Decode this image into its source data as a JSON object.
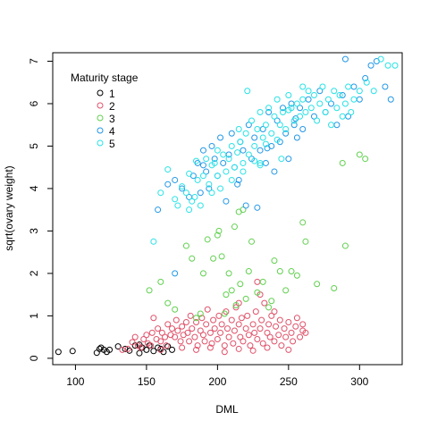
{
  "chart_data": {
    "type": "scatter",
    "xlabel": "DML",
    "ylabel": "sqrt(ovary weight)",
    "xlim": [
      84,
      330
    ],
    "ylim": [
      -0.15,
      7.2
    ],
    "x_ticks": [
      100,
      150,
      200,
      250,
      300
    ],
    "y_ticks": [
      0,
      1,
      2,
      3,
      4,
      5,
      6,
      7
    ],
    "grid": false,
    "legend": {
      "title": "Maturity stage",
      "placement": "top-left",
      "entries": [
        "1",
        "2",
        "3",
        "4",
        "5"
      ]
    },
    "series": [
      {
        "name": "1",
        "color": "#000000",
        "points": [
          [
            88,
            0.15
          ],
          [
            98,
            0.17
          ],
          [
            115,
            0.13
          ],
          [
            117,
            0.22
          ],
          [
            118,
            0.25
          ],
          [
            120,
            0.2
          ],
          [
            122,
            0.15
          ],
          [
            124,
            0.2
          ],
          [
            130,
            0.28
          ],
          [
            135,
            0.22
          ],
          [
            142,
            0.3
          ],
          [
            145,
            0.32
          ],
          [
            147,
            0.25
          ],
          [
            150,
            0.2
          ],
          [
            152,
            0.3
          ],
          [
            155,
            0.17
          ],
          [
            158,
            0.25
          ],
          [
            162,
            0.15
          ],
          [
            165,
            0.28
          ],
          [
            168,
            0.2
          ],
          [
            145,
            0.12
          ],
          [
            138,
            0.18
          ],
          [
            160,
            0.22
          ]
        ]
      },
      {
        "name": "2",
        "color": "#DF536B",
        "points": [
          [
            133,
            0.2
          ],
          [
            137,
            0.22
          ],
          [
            140,
            0.38
          ],
          [
            142,
            0.5
          ],
          [
            144,
            0.3
          ],
          [
            146,
            0.25
          ],
          [
            148,
            0.45
          ],
          [
            150,
            0.55
          ],
          [
            151,
            0.35
          ],
          [
            153,
            0.3
          ],
          [
            154,
            0.6
          ],
          [
            155,
            0.95
          ],
          [
            157,
            0.45
          ],
          [
            158,
            0.7
          ],
          [
            160,
            0.4
          ],
          [
            161,
            0.6
          ],
          [
            163,
            0.5
          ],
          [
            164,
            0.3
          ],
          [
            165,
            0.8
          ],
          [
            167,
            0.55
          ],
          [
            168,
            0.7
          ],
          [
            170,
            0.5
          ],
          [
            171,
            0.9
          ],
          [
            172,
            0.65
          ],
          [
            174,
            0.4
          ],
          [
            175,
            0.75
          ],
          [
            176,
            0.55
          ],
          [
            178,
            0.85
          ],
          [
            179,
            0.6
          ],
          [
            180,
            0.4
          ],
          [
            181,
            1.0
          ],
          [
            182,
            0.7
          ],
          [
            184,
            0.5
          ],
          [
            185,
            0.85
          ],
          [
            186,
            0.3
          ],
          [
            188,
            0.65
          ],
          [
            189,
            0.95
          ],
          [
            190,
            0.55
          ],
          [
            191,
            0.4
          ],
          [
            192,
            0.8
          ],
          [
            193,
            1.15
          ],
          [
            195,
            0.6
          ],
          [
            196,
            0.35
          ],
          [
            197,
            0.9
          ],
          [
            198,
            0.7
          ],
          [
            200,
            0.45
          ],
          [
            201,
            1.0
          ],
          [
            202,
            0.6
          ],
          [
            203,
            0.8
          ],
          [
            205,
            0.3
          ],
          [
            206,
            1.1
          ],
          [
            207,
            0.7
          ],
          [
            208,
            0.5
          ],
          [
            210,
            0.9
          ],
          [
            211,
            0.35
          ],
          [
            212,
            0.65
          ],
          [
            213,
            1.2
          ],
          [
            215,
            0.8
          ],
          [
            216,
            0.5
          ],
          [
            217,
            0.95
          ],
          [
            218,
            0.4
          ],
          [
            220,
            0.7
          ],
          [
            221,
            1.0
          ],
          [
            222,
            0.55
          ],
          [
            223,
            0.3
          ],
          [
            225,
            0.8
          ],
          [
            226,
            0.6
          ],
          [
            227,
            1.1
          ],
          [
            228,
            0.45
          ],
          [
            230,
            0.7
          ],
          [
            231,
            0.9
          ],
          [
            232,
            0.35
          ],
          [
            233,
            1.3
          ],
          [
            235,
            0.6
          ],
          [
            236,
            0.8
          ],
          [
            237,
            0.5
          ],
          [
            238,
            1.0
          ],
          [
            240,
            0.4
          ],
          [
            241,
            0.75
          ],
          [
            243,
            0.55
          ],
          [
            244,
            0.9
          ],
          [
            245,
            0.3
          ],
          [
            247,
            0.7
          ],
          [
            248,
            0.5
          ],
          [
            250,
            0.85
          ],
          [
            252,
            0.6
          ],
          [
            253,
            0.4
          ],
          [
            255,
            0.75
          ],
          [
            256,
            0.95
          ],
          [
            258,
            0.5
          ],
          [
            260,
            0.8
          ],
          [
            262,
            0.6
          ],
          [
            160,
            0.2
          ],
          [
            175,
            0.25
          ],
          [
            185,
            0.2
          ],
          [
            195,
            0.25
          ],
          [
            205,
            0.15
          ],
          [
            215,
            0.22
          ],
          [
            225,
            0.18
          ],
          [
            235,
            0.25
          ],
          [
            250,
            0.2
          ],
          [
            230,
            1.5
          ],
          [
            240,
            1.1
          ],
          [
            228,
            1.8
          ],
          [
            215,
            1.3
          ],
          [
            260,
            0.65
          ]
        ]
      },
      {
        "name": "3",
        "color": "#61D04F",
        "points": [
          [
            152,
            1.6
          ],
          [
            160,
            1.8
          ],
          [
            165,
            1.3
          ],
          [
            170,
            1.15
          ],
          [
            178,
            2.65
          ],
          [
            182,
            2.35
          ],
          [
            185,
            0.95
          ],
          [
            188,
            1.05
          ],
          [
            190,
            2.0
          ],
          [
            193,
            2.8
          ],
          [
            197,
            2.35
          ],
          [
            200,
            2.9
          ],
          [
            201,
            3.0
          ],
          [
            203,
            2.4
          ],
          [
            206,
            1.5
          ],
          [
            208,
            2.0
          ],
          [
            210,
            1.6
          ],
          [
            212,
            3.1
          ],
          [
            215,
            3.45
          ],
          [
            216,
            1.75
          ],
          [
            218,
            3.5
          ],
          [
            220,
            1.4
          ],
          [
            222,
            2.05
          ],
          [
            224,
            2.75
          ],
          [
            228,
            1.55
          ],
          [
            232,
            1.8
          ],
          [
            236,
            1.2
          ],
          [
            238,
            1.35
          ],
          [
            240,
            2.3
          ],
          [
            244,
            2.05
          ],
          [
            248,
            1.6
          ],
          [
            252,
            2.05
          ],
          [
            256,
            1.95
          ],
          [
            260,
            3.2
          ],
          [
            262,
            2.75
          ],
          [
            270,
            1.75
          ],
          [
            282,
            1.65
          ],
          [
            290,
            2.65
          ],
          [
            300,
            4.8
          ],
          [
            304,
            4.7
          ],
          [
            288,
            4.6
          ],
          [
            213,
            1.25
          ],
          [
            205,
            1.05
          ]
        ]
      },
      {
        "name": "4",
        "color": "#2297E6",
        "points": [
          [
            158,
            3.5
          ],
          [
            165,
            4.1
          ],
          [
            170,
            4.2
          ],
          [
            175,
            4.0
          ],
          [
            180,
            3.8
          ],
          [
            183,
            4.3
          ],
          [
            186,
            4.6
          ],
          [
            188,
            3.9
          ],
          [
            190,
            4.9
          ],
          [
            192,
            4.4
          ],
          [
            194,
            4.0
          ],
          [
            196,
            5.0
          ],
          [
            198,
            4.7
          ],
          [
            200,
            4.3
          ],
          [
            202,
            5.2
          ],
          [
            204,
            4.6
          ],
          [
            206,
            3.7
          ],
          [
            208,
            4.8
          ],
          [
            210,
            5.3
          ],
          [
            212,
            4.5
          ],
          [
            214,
            4.1
          ],
          [
            216,
            5.1
          ],
          [
            218,
            4.9
          ],
          [
            220,
            3.6
          ],
          [
            222,
            5.5
          ],
          [
            224,
            4.7
          ],
          [
            226,
            5.2
          ],
          [
            228,
            3.55
          ],
          [
            230,
            4.9
          ],
          [
            232,
            5.4
          ],
          [
            234,
            4.6
          ],
          [
            236,
            5.8
          ],
          [
            238,
            5.0
          ],
          [
            240,
            4.4
          ],
          [
            242,
            5.6
          ],
          [
            244,
            5.1
          ],
          [
            246,
            5.9
          ],
          [
            248,
            5.3
          ],
          [
            250,
            4.7
          ],
          [
            252,
            6.0
          ],
          [
            254,
            5.5
          ],
          [
            256,
            5.2
          ],
          [
            258,
            5.9
          ],
          [
            260,
            5.4
          ],
          [
            264,
            6.1
          ],
          [
            268,
            5.7
          ],
          [
            272,
            6.3
          ],
          [
            276,
            5.8
          ],
          [
            280,
            6.0
          ],
          [
            284,
            5.5
          ],
          [
            288,
            6.2
          ],
          [
            292,
            5.7
          ],
          [
            296,
            6.4
          ],
          [
            300,
            6.1
          ],
          [
            304,
            6.6
          ],
          [
            308,
            6.9
          ],
          [
            312,
            7.0
          ],
          [
            318,
            6.4
          ],
          [
            322,
            6.1
          ],
          [
            290,
            7.05
          ],
          [
            170,
            2.0
          ],
          [
            190,
            4.55
          ],
          [
            215,
            4.2
          ],
          [
            235,
            4.95
          ],
          [
            255,
            5.65
          ]
        ]
      },
      {
        "name": "5",
        "color": "#28E2E5",
        "points": [
          [
            155,
            2.75
          ],
          [
            160,
            3.9
          ],
          [
            165,
            4.45
          ],
          [
            170,
            3.75
          ],
          [
            172,
            3.6
          ],
          [
            175,
            4.05
          ],
          [
            178,
            3.9
          ],
          [
            180,
            4.35
          ],
          [
            182,
            3.7
          ],
          [
            184,
            3.8
          ],
          [
            186,
            4.2
          ],
          [
            188,
            3.6
          ],
          [
            190,
            4.3
          ],
          [
            192,
            4.7
          ],
          [
            194,
            4.1
          ],
          [
            196,
            3.9
          ],
          [
            198,
            4.6
          ],
          [
            200,
            4.3
          ],
          [
            202,
            4.0
          ],
          [
            204,
            4.8
          ],
          [
            206,
            4.4
          ],
          [
            208,
            4.7
          ],
          [
            210,
            5.0
          ],
          [
            212,
            4.5
          ],
          [
            214,
            4.85
          ],
          [
            216,
            5.1
          ],
          [
            218,
            4.6
          ],
          [
            220,
            5.3
          ],
          [
            221,
            6.3
          ],
          [
            222,
            4.8
          ],
          [
            224,
            5.6
          ],
          [
            226,
            5.0
          ],
          [
            228,
            5.4
          ],
          [
            230,
            5.8
          ],
          [
            232,
            5.2
          ],
          [
            234,
            5.5
          ],
          [
            236,
            5.9
          ],
          [
            238,
            5.3
          ],
          [
            240,
            5.7
          ],
          [
            242,
            6.1
          ],
          [
            244,
            5.5
          ],
          [
            246,
            5.8
          ],
          [
            248,
            5.4
          ],
          [
            250,
            6.2
          ],
          [
            252,
            5.9
          ],
          [
            254,
            5.6
          ],
          [
            256,
            6.0
          ],
          [
            258,
            5.7
          ],
          [
            260,
            6.1
          ],
          [
            262,
            5.8
          ],
          [
            264,
            6.3
          ],
          [
            266,
            5.9
          ],
          [
            268,
            6.2
          ],
          [
            270,
            5.6
          ],
          [
            272,
            6.0
          ],
          [
            274,
            6.4
          ],
          [
            276,
            5.8
          ],
          [
            278,
            6.1
          ],
          [
            280,
            5.5
          ],
          [
            282,
            6.3
          ],
          [
            284,
            5.9
          ],
          [
            286,
            6.2
          ],
          [
            288,
            5.7
          ],
          [
            290,
            6.0
          ],
          [
            292,
            6.4
          ],
          [
            294,
            5.8
          ],
          [
            296,
            6.1
          ],
          [
            300,
            6.3
          ],
          [
            305,
            6.5
          ],
          [
            310,
            6.3
          ],
          [
            315,
            7.05
          ],
          [
            320,
            6.9
          ],
          [
            325,
            6.9
          ],
          [
            210,
            4.2
          ],
          [
            218,
            4.4
          ],
          [
            226,
            4.65
          ],
          [
            234,
            5.05
          ],
          [
            242,
            5.15
          ],
          [
            250,
            5.85
          ],
          [
            180,
            3.5
          ],
          [
            200,
            4.9
          ],
          [
            215,
            5.4
          ],
          [
            230,
            4.6
          ],
          [
            245,
            4.7
          ],
          [
            260,
            6.4
          ],
          [
            230,
            4.55
          ],
          [
            185,
            4.65
          ],
          [
            196,
            4.55
          ]
        ]
      }
    ]
  }
}
